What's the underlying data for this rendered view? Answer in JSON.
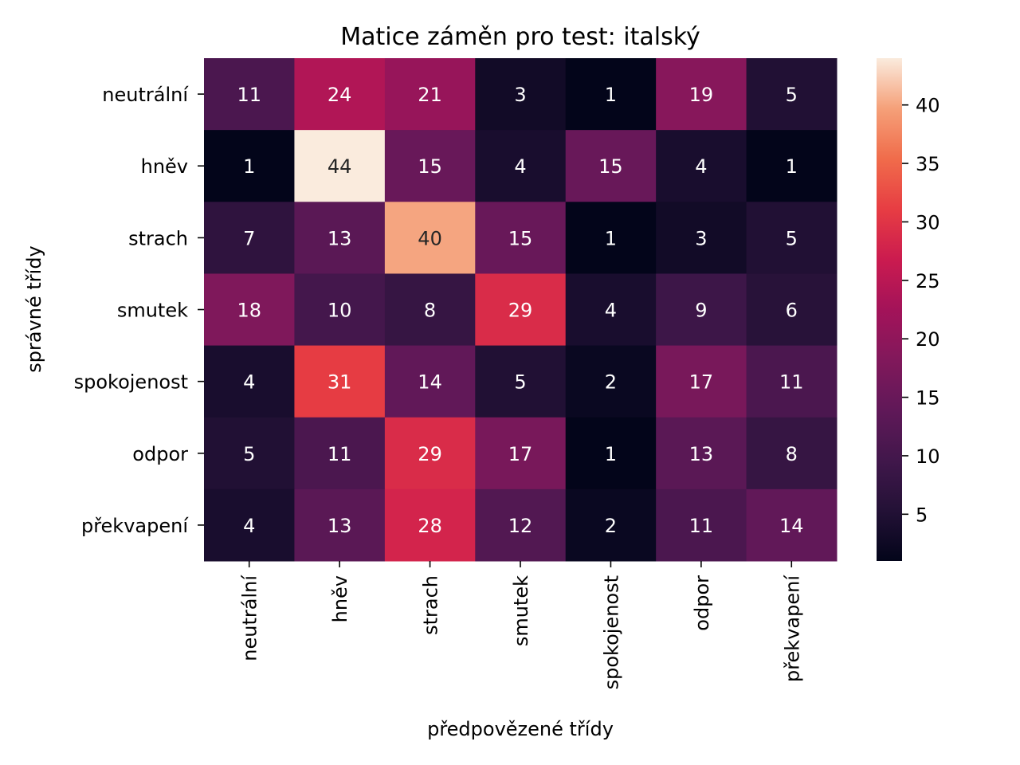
{
  "chart_data": {
    "type": "heatmap",
    "title": "Matice záměn pro test: italský",
    "xlabel": "předpovězené třídy",
    "ylabel": "správné třídy",
    "row_labels": [
      "neutrální",
      "hněv",
      "strach",
      "smutek",
      "spokojenost",
      "odpor",
      "překvapení"
    ],
    "col_labels": [
      "neutrální",
      "hněv",
      "strach",
      "smutek",
      "spokojenost",
      "odpor",
      "překvapení"
    ],
    "values": [
      [
        11,
        24,
        21,
        3,
        1,
        19,
        5
      ],
      [
        1,
        44,
        15,
        4,
        15,
        4,
        1
      ],
      [
        7,
        13,
        40,
        15,
        1,
        3,
        5
      ],
      [
        18,
        10,
        8,
        29,
        4,
        9,
        6
      ],
      [
        4,
        31,
        14,
        5,
        2,
        17,
        11
      ],
      [
        5,
        11,
        29,
        17,
        1,
        13,
        8
      ],
      [
        4,
        13,
        28,
        12,
        2,
        11,
        14
      ]
    ],
    "colormap": "rocket",
    "value_range": [
      1,
      44
    ],
    "colorbar_ticks": [
      5,
      10,
      15,
      20,
      25,
      30,
      35,
      40
    ],
    "annotations": true
  }
}
